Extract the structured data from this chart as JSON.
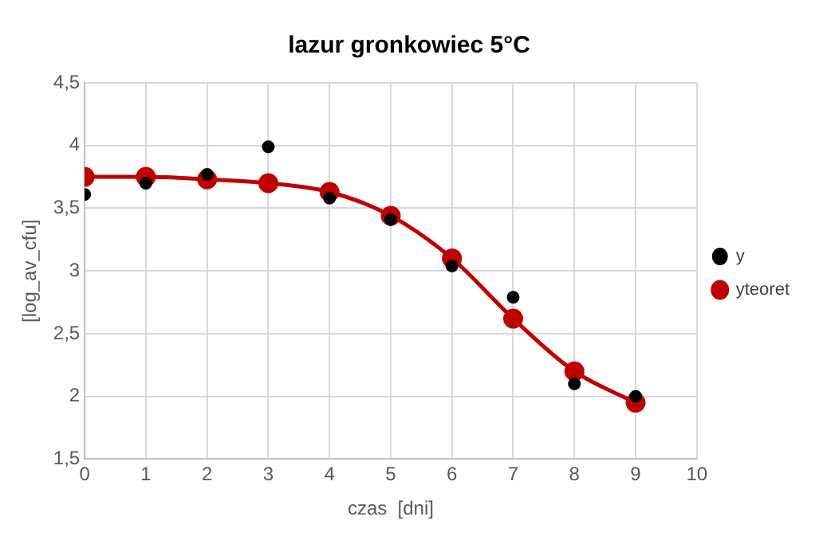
{
  "chart_data": {
    "type": "scatter",
    "title": "lazur gronkowiec 5°C",
    "xlabel": "czas  [dni]",
    "ylabel": "[log_av_cfu]",
    "x": [
      0,
      1,
      2,
      3,
      4,
      5,
      6,
      7,
      8,
      9
    ],
    "series": [
      {
        "name": "y",
        "type": "scatter",
        "color": "#000000",
        "marker": "circle",
        "values": [
          3.61,
          3.7,
          3.77,
          3.99,
          3.58,
          3.41,
          3.04,
          2.79,
          2.1,
          2.0
        ]
      },
      {
        "name": "yteoret",
        "type": "line",
        "color": "#c00000",
        "marker": "circle",
        "line_style": "solid",
        "values": [
          3.75,
          3.75,
          3.73,
          3.7,
          3.63,
          3.44,
          3.1,
          2.62,
          2.2,
          1.95
        ]
      }
    ],
    "xlim": [
      0,
      10
    ],
    "xticks": [
      0,
      1,
      2,
      3,
      4,
      5,
      6,
      7,
      8,
      9,
      10
    ],
    "ylim": [
      1.5,
      4.5
    ],
    "yticks": [
      {
        "value": 1.5,
        "label": "1,5"
      },
      2,
      {
        "value": 2.5,
        "label": "2,5"
      },
      3,
      {
        "value": 3.5,
        "label": "3,5"
      },
      4,
      {
        "value": 4.5,
        "label": "4,5"
      }
    ],
    "grid": true,
    "legend": "right"
  }
}
